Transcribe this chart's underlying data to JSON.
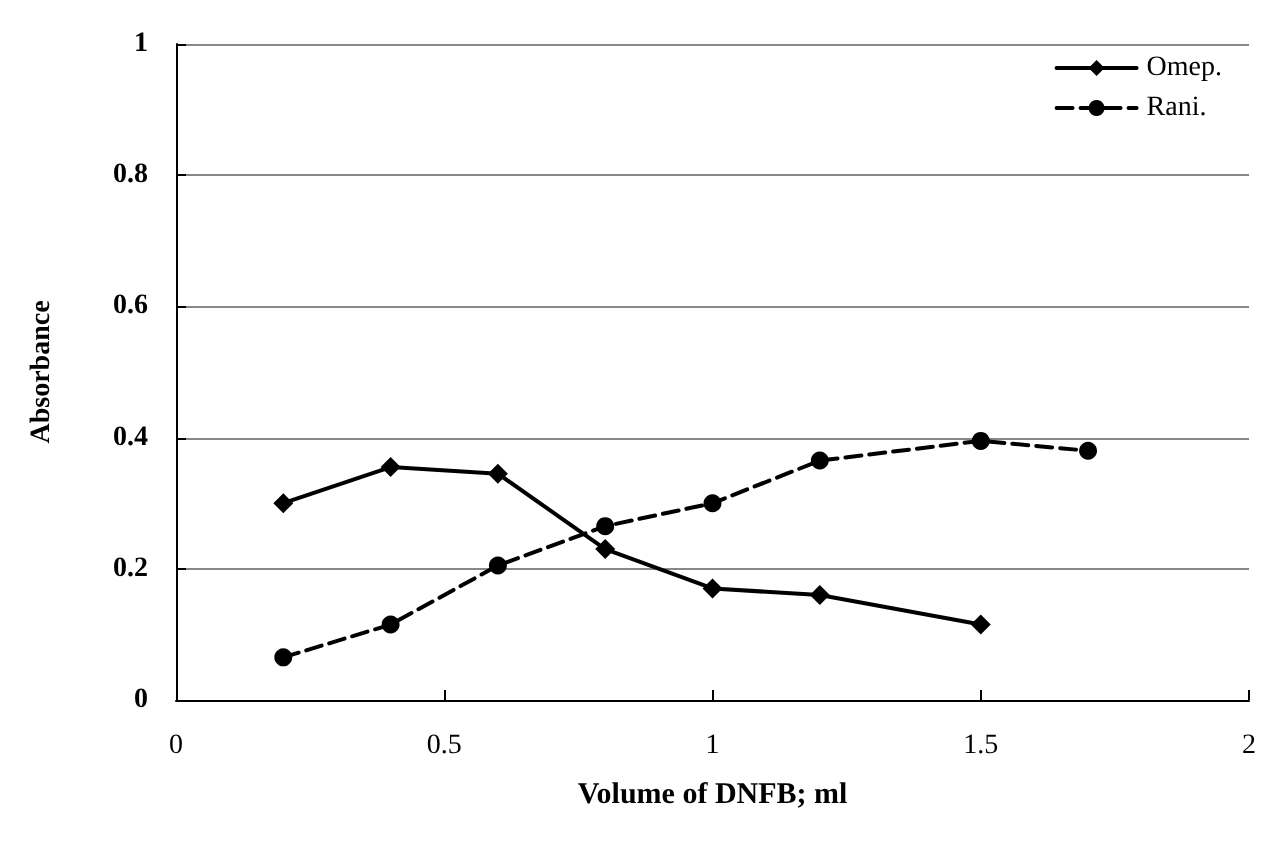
{
  "chart_data": {
    "type": "line",
    "xlabel": "Volume of DNFB; ml",
    "ylabel": "Absorbance",
    "xlim": [
      0,
      2
    ],
    "xticks": [
      0,
      0.5,
      1,
      1.5,
      2
    ],
    "ylim": [
      0,
      1
    ],
    "yticks": [
      0,
      0.2,
      0.4,
      0.6,
      0.8,
      1
    ],
    "grid": "y",
    "legend": "top right",
    "series": [
      {
        "name": "Omep.",
        "color": "#000000",
        "marker": "diamond",
        "line_style": "solid",
        "x": [
          0.2,
          0.4,
          0.6,
          0.8,
          1.0,
          1.2,
          1.5
        ],
        "values": [
          0.3,
          0.355,
          0.345,
          0.23,
          0.17,
          0.16,
          0.115
        ]
      },
      {
        "name": "Rani.",
        "color": "#000000",
        "marker": "circle",
        "line_style": "dashed",
        "x": [
          0.2,
          0.4,
          0.6,
          0.8,
          1.0,
          1.2,
          1.5,
          1.7
        ],
        "values": [
          0.065,
          0.115,
          0.205,
          0.265,
          0.3,
          0.365,
          0.395,
          0.38
        ]
      }
    ]
  }
}
